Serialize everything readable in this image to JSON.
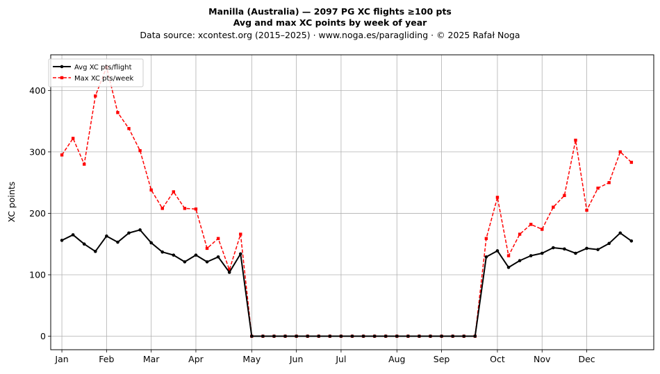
{
  "chart_data": {
    "type": "line",
    "title_line1": "Manilla (Australia)  —  2097 PG XC flights ≥100 pts",
    "title_line2": "Avg and max XC points by week of year",
    "subtitle": "Data source: xcontest.org (2015–2025)  ·  www.noga.es/paragliding  ·  © 2025 Rafał Noga",
    "xlabel": "",
    "ylabel": "XC points",
    "xlim": [
      0,
      54
    ],
    "ylim": [
      -22,
      458
    ],
    "yticks": [
      0,
      100,
      200,
      300,
      400
    ],
    "xticks": [
      {
        "label": "Jan",
        "week": 1
      },
      {
        "label": "Feb",
        "week": 5
      },
      {
        "label": "Mar",
        "week": 9
      },
      {
        "label": "Apr",
        "week": 13
      },
      {
        "label": "May",
        "week": 18
      },
      {
        "label": "Jun",
        "week": 22
      },
      {
        "label": "Jul",
        "week": 26
      },
      {
        "label": "Aug",
        "week": 31
      },
      {
        "label": "Sep",
        "week": 35
      },
      {
        "label": "Oct",
        "week": 40
      },
      {
        "label": "Nov",
        "week": 44
      },
      {
        "label": "Dec",
        "week": 48
      }
    ],
    "grid": true,
    "legend_position": "top-left",
    "weeks": [
      1,
      2,
      3,
      4,
      5,
      6,
      7,
      8,
      9,
      10,
      11,
      12,
      13,
      14,
      15,
      16,
      17,
      18,
      19,
      20,
      21,
      22,
      23,
      24,
      25,
      26,
      27,
      28,
      29,
      30,
      31,
      32,
      33,
      34,
      35,
      36,
      37,
      38,
      39,
      40,
      41,
      42,
      43,
      44,
      45,
      46,
      47,
      48,
      49,
      50,
      51,
      52
    ],
    "series": [
      {
        "name": "Avg XC pts/flight",
        "color": "#000000",
        "style": "solid-circle",
        "values": [
          156,
          165,
          150,
          138,
          163,
          153,
          168,
          173,
          152,
          137,
          132,
          121,
          132,
          121,
          129,
          104,
          134,
          0,
          0,
          0,
          0,
          0,
          0,
          0,
          0,
          0,
          0,
          0,
          0,
          0,
          0,
          0,
          0,
          0,
          0,
          0,
          0,
          0,
          129,
          139,
          112,
          123,
          131,
          135,
          144,
          142,
          135,
          143,
          141,
          151,
          168,
          155
        ]
      },
      {
        "name": "Max XC pts/week",
        "color": "#ff0000",
        "style": "dashed-square",
        "values": [
          295,
          322,
          280,
          391,
          438,
          364,
          338,
          302,
          238,
          208,
          235,
          208,
          207,
          143,
          159,
          108,
          166,
          0,
          0,
          0,
          0,
          0,
          0,
          0,
          0,
          0,
          0,
          0,
          0,
          0,
          0,
          0,
          0,
          0,
          0,
          0,
          0,
          0,
          159,
          226,
          131,
          166,
          182,
          174,
          210,
          229,
          319,
          205,
          241,
          250,
          300,
          283
        ]
      }
    ]
  }
}
